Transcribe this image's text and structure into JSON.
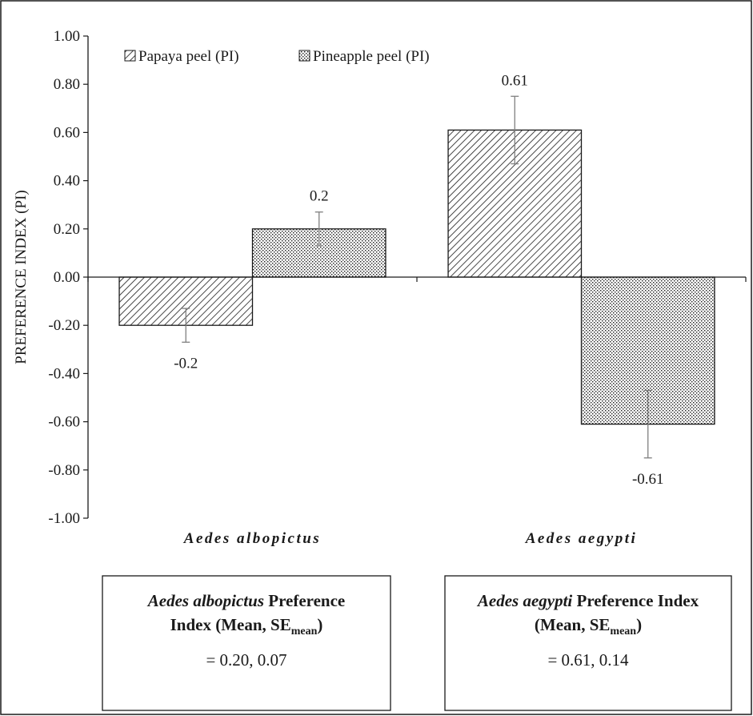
{
  "chart_data": {
    "type": "bar",
    "categories": [
      "Aedes albopictus",
      "Aedes aegypti"
    ],
    "series": [
      {
        "name": "Papaya peel (PI)",
        "values": [
          -0.2,
          0.61
        ],
        "errors": [
          0.07,
          0.14
        ],
        "labels": [
          "-0.2",
          "0.61"
        ],
        "pattern": "diagonal-hatch"
      },
      {
        "name": "Pineapple peel (PI)",
        "values": [
          0.2,
          -0.61
        ],
        "errors": [
          0.07,
          0.14
        ],
        "labels": [
          "0.2",
          "-0.61"
        ],
        "pattern": "dots"
      }
    ],
    "ylabel": "PREFERENCE INDEX (PI)",
    "ylim": [
      -1.0,
      1.0
    ],
    "yticks": [
      1.0,
      0.8,
      0.6,
      0.4,
      0.2,
      0.0,
      -0.2,
      -0.4,
      -0.6,
      -0.8,
      -1.0
    ],
    "ytick_labels": [
      "1.00",
      "0.80",
      "0.60",
      "0.40",
      "0.20",
      "0.00",
      "-0.20",
      "-0.40",
      "-0.60",
      "-0.80",
      "-1.00"
    ],
    "grid": false,
    "legend_position": "top-left"
  },
  "info_boxes": [
    {
      "species": "Aedes albopictus",
      "title_rest": " Preference",
      "line2_prefix": "Index (Mean, SE",
      "line2_sub": "mean",
      "line2_suffix": ")",
      "value": "= 0.20, 0.07"
    },
    {
      "species": "Aedes aegypti",
      "title_rest": " Preference Index",
      "line2_prefix": "(Mean, SE",
      "line2_sub": "mean",
      "line2_suffix": ")",
      "value": "= 0.61, 0.14"
    }
  ],
  "colors": {
    "ink": "#1a1a1a",
    "error_bar": "#7f7f7f",
    "fill": "#ffffff"
  }
}
